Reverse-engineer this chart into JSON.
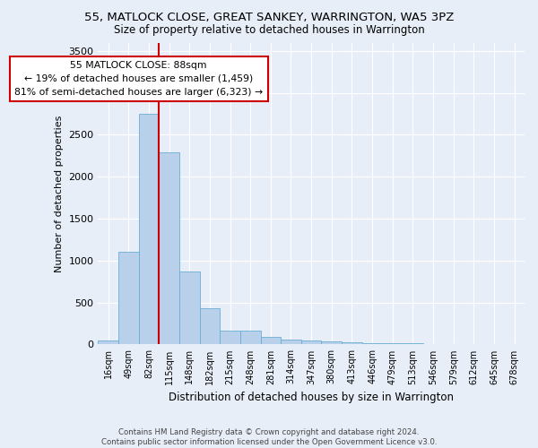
{
  "title": "55, MATLOCK CLOSE, GREAT SANKEY, WARRINGTON, WA5 3PZ",
  "subtitle": "Size of property relative to detached houses in Warrington",
  "xlabel": "Distribution of detached houses by size in Warrington",
  "ylabel": "Number of detached properties",
  "categories": [
    "16sqm",
    "49sqm",
    "82sqm",
    "115sqm",
    "148sqm",
    "182sqm",
    "215sqm",
    "248sqm",
    "281sqm",
    "314sqm",
    "347sqm",
    "380sqm",
    "413sqm",
    "446sqm",
    "479sqm",
    "513sqm",
    "546sqm",
    "579sqm",
    "612sqm",
    "645sqm",
    "678sqm"
  ],
  "values": [
    50,
    1100,
    2750,
    2290,
    870,
    430,
    170,
    160,
    90,
    60,
    50,
    35,
    30,
    20,
    15,
    10,
    8,
    5,
    3,
    2,
    1
  ],
  "bar_color": "#b8d0ea",
  "bar_edge_color": "#6aaed6",
  "subject_line_color": "#cc0000",
  "annotation_text_line1": "55 MATLOCK CLOSE: 88sqm",
  "annotation_text_line2": "← 19% of detached houses are smaller (1,459)",
  "annotation_text_line3": "81% of semi-detached houses are larger (6,323) →",
  "annotation_box_color": "#ffffff",
  "annotation_box_edge_color": "#cc0000",
  "footer_line1": "Contains HM Land Registry data © Crown copyright and database right 2024.",
  "footer_line2": "Contains public sector information licensed under the Open Government Licence v3.0.",
  "ylim": [
    0,
    3600
  ],
  "background_color": "#e8eef8",
  "grid_color": "#ffffff"
}
